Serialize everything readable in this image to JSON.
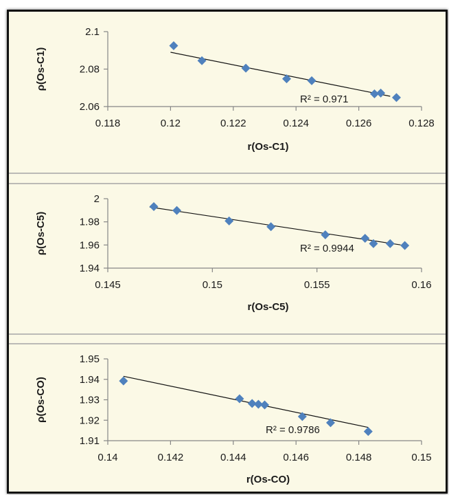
{
  "colors": {
    "panel_background": "#fbf9e6",
    "marker": "#4f81bd",
    "trendline": "#111111",
    "axis": "#868686",
    "separator": "#a6a6a6",
    "frame": "#111111"
  },
  "chart_data": [
    {
      "type": "scatter",
      "xlabel": "r(Os-C1)",
      "ylabel": "ρ(Os-C1)",
      "xlim": [
        0.118,
        0.128
      ],
      "ylim": [
        2.06,
        2.1
      ],
      "xticks": [
        0.118,
        0.12,
        0.122,
        0.124,
        0.126,
        0.128
      ],
      "yticks": [
        2.06,
        2.08,
        2.1
      ],
      "xtick_labels": [
        "0.118",
        "0.12",
        "0.122",
        "0.124",
        "0.126",
        "0.128"
      ],
      "ytick_labels": [
        "2.06",
        "2.08",
        "2.1"
      ],
      "points": {
        "x": [
          0.1201,
          0.121,
          0.1224,
          0.1237,
          0.1245,
          0.1265,
          0.1267,
          0.1272
        ],
        "y": [
          2.0925,
          2.0845,
          2.0805,
          2.0748,
          2.0738,
          2.0668,
          2.0672,
          2.0648
        ]
      },
      "trendline": {
        "x": [
          0.12,
          0.127
        ],
        "y": [
          2.089,
          2.0655
        ]
      },
      "annotation": "R² = 0.971",
      "legend": "none",
      "grid": false
    },
    {
      "type": "scatter",
      "xlabel": "r(Os-C5)",
      "ylabel": "ρ(Os-C5)",
      "xlim": [
        0.145,
        0.16
      ],
      "ylim": [
        1.94,
        2.0
      ],
      "xticks": [
        0.145,
        0.15,
        0.155,
        0.16
      ],
      "yticks": [
        1.94,
        1.96,
        1.98,
        2.0
      ],
      "xtick_labels": [
        "0.145",
        "0.15",
        "0.155",
        "0.16"
      ],
      "ytick_labels": [
        "1.94",
        "1.96",
        "1.98",
        "2"
      ],
      "points": {
        "x": [
          0.1472,
          0.1483,
          0.1508,
          0.1528,
          0.1554,
          0.1573,
          0.1577,
          0.1585,
          0.1592
        ],
        "y": [
          1.9932,
          1.9898,
          1.9808,
          1.9758,
          1.9688,
          1.9658,
          1.9612,
          1.9612,
          1.9595
        ]
      },
      "trendline": {
        "x": [
          0.147,
          0.159
        ],
        "y": [
          1.9928,
          1.9601
        ]
      },
      "annotation": "R² = 0.9944",
      "legend": "none",
      "grid": false
    },
    {
      "type": "scatter",
      "xlabel": "r(Os-CO)",
      "ylabel": "ρ(Os-CO)",
      "xlim": [
        0.14,
        0.15
      ],
      "ylim": [
        1.91,
        1.95
      ],
      "xticks": [
        0.14,
        0.142,
        0.144,
        0.146,
        0.148,
        0.15
      ],
      "yticks": [
        1.91,
        1.92,
        1.93,
        1.94,
        1.95
      ],
      "xtick_labels": [
        "0.14",
        "0.142",
        "0.144",
        "0.146",
        "0.148",
        "0.15"
      ],
      "ytick_labels": [
        "1.91",
        "1.92",
        "1.93",
        "1.94",
        "1.95"
      ],
      "points": {
        "x": [
          0.1405,
          0.1442,
          0.1446,
          0.1448,
          0.145,
          0.1462,
          0.1471,
          0.1483
        ],
        "y": [
          1.9392,
          1.9305,
          1.9282,
          1.9278,
          1.9275,
          1.9218,
          1.9188,
          1.9145
        ]
      },
      "trendline": {
        "x": [
          0.1405,
          0.1483
        ],
        "y": [
          1.9415,
          1.9165
        ]
      },
      "annotation": "R² = 0.9786",
      "legend": "none",
      "grid": false
    }
  ]
}
